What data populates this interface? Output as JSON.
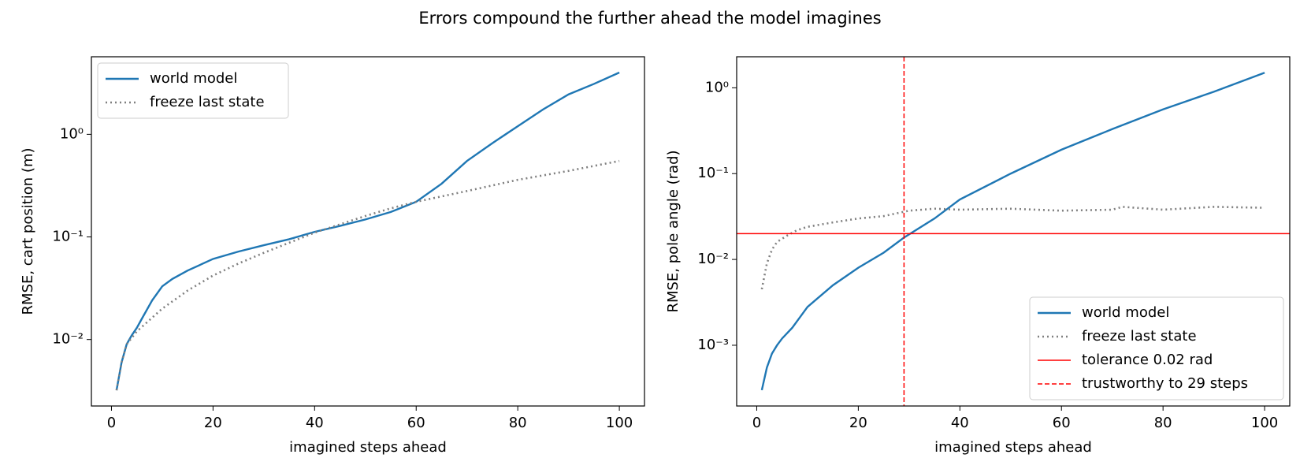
{
  "title": "Errors compound the further ahead the model imagines",
  "chart_data": [
    {
      "type": "line",
      "xlabel": "imagined steps ahead",
      "ylabel": "RMSE, cart position (m)",
      "xlim": [
        -3.95,
        104.95
      ],
      "xticks": [
        0,
        20,
        40,
        60,
        80,
        100
      ],
      "ylim": [
        0.00225,
        5.7
      ],
      "yscale": "log",
      "yticks": [
        {
          "value": 0.01,
          "label": "10⁻²"
        },
        {
          "value": 0.1,
          "label": "10⁻¹"
        },
        {
          "value": 1,
          "label": "10⁰"
        }
      ],
      "legend": "upper left",
      "series": [
        {
          "name": "world model",
          "color": "#1f77b4",
          "style": "solid",
          "x": [
            1,
            2,
            3,
            4,
            5,
            6,
            8,
            10,
            12,
            15,
            20,
            25,
            30,
            35,
            40,
            45,
            50,
            55,
            60,
            65,
            70,
            75,
            80,
            85,
            90,
            95,
            100
          ],
          "values": [
            0.0032,
            0.006,
            0.009,
            0.011,
            0.013,
            0.016,
            0.024,
            0.033,
            0.039,
            0.047,
            0.061,
            0.072,
            0.083,
            0.095,
            0.112,
            0.128,
            0.148,
            0.175,
            0.22,
            0.33,
            0.55,
            0.82,
            1.2,
            1.75,
            2.45,
            3.1,
            4.0
          ]
        },
        {
          "name": "freeze last state",
          "color": "#808080",
          "style": "dotted",
          "x": [
            1,
            2,
            3,
            5,
            10,
            15,
            20,
            25,
            30,
            40,
            50,
            55,
            60,
            70,
            80,
            90,
            100
          ],
          "values": [
            0.0032,
            0.006,
            0.009,
            0.012,
            0.02,
            0.03,
            0.042,
            0.055,
            0.07,
            0.11,
            0.16,
            0.19,
            0.22,
            0.28,
            0.36,
            0.44,
            0.55
          ]
        }
      ]
    },
    {
      "type": "line",
      "xlabel": "imagined steps ahead",
      "ylabel": "RMSE, pole angle (rad)",
      "xlim": [
        -3.95,
        104.95
      ],
      "xticks": [
        0,
        20,
        40,
        60,
        80,
        100
      ],
      "ylim": [
        0.000196,
        2.3
      ],
      "yscale": "log",
      "yticks": [
        {
          "value": 0.001,
          "label": "10⁻³"
        },
        {
          "value": 0.01,
          "label": "10⁻²"
        },
        {
          "value": 0.1,
          "label": "10⁻¹"
        },
        {
          "value": 1,
          "label": "10⁰"
        }
      ],
      "legend": "lower right",
      "series": [
        {
          "name": "world model",
          "color": "#1f77b4",
          "style": "solid",
          "x": [
            1,
            2,
            3,
            4,
            5,
            7,
            10,
            15,
            20,
            25,
            29,
            35,
            40,
            50,
            60,
            70,
            80,
            90,
            100
          ],
          "values": [
            0.0003,
            0.00055,
            0.0008,
            0.001,
            0.0012,
            0.0016,
            0.0028,
            0.005,
            0.008,
            0.012,
            0.018,
            0.03,
            0.05,
            0.1,
            0.19,
            0.33,
            0.56,
            0.9,
            1.5
          ]
        },
        {
          "name": "freeze last state",
          "color": "#808080",
          "style": "dotted",
          "x": [
            1,
            2,
            3,
            4,
            6,
            8,
            10,
            15,
            20,
            25,
            30,
            35,
            40,
            50,
            60,
            70,
            72,
            80,
            90,
            100
          ],
          "values": [
            0.0045,
            0.009,
            0.013,
            0.016,
            0.019,
            0.022,
            0.024,
            0.027,
            0.03,
            0.032,
            0.037,
            0.039,
            0.038,
            0.039,
            0.037,
            0.038,
            0.041,
            0.038,
            0.041,
            0.04
          ]
        }
      ],
      "hline": {
        "value": 0.02,
        "label": "tolerance 0.02 rad",
        "color": "#ff0000"
      },
      "vline": {
        "value": 29,
        "label": "trustworthy to 29 steps",
        "color": "#ff0000"
      }
    }
  ]
}
